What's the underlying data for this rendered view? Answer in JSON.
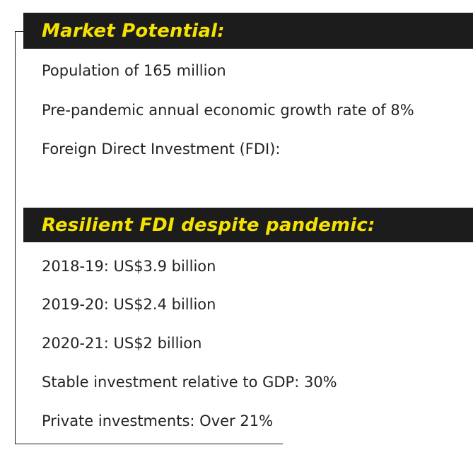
{
  "market": {
    "title": "Market Potential:",
    "items": [
      "Population of 165 million",
      "Pre-pandemic annual economic growth rate of 8%",
      "Foreign Direct Investment (FDI):"
    ]
  },
  "fdi": {
    "title": "Resilient FDI despite pandemic:",
    "items": [
      "2018-19: US$3.9 billion",
      "2019-20: US$2.4 billion",
      "2020-21: US$2 billion",
      "Stable investment relative to GDP: 30%",
      "Private investments: Over 21%"
    ]
  },
  "colors": {
    "header_bg": "#1c1c1c",
    "header_text": "#f5e200",
    "body_text": "#232323"
  }
}
